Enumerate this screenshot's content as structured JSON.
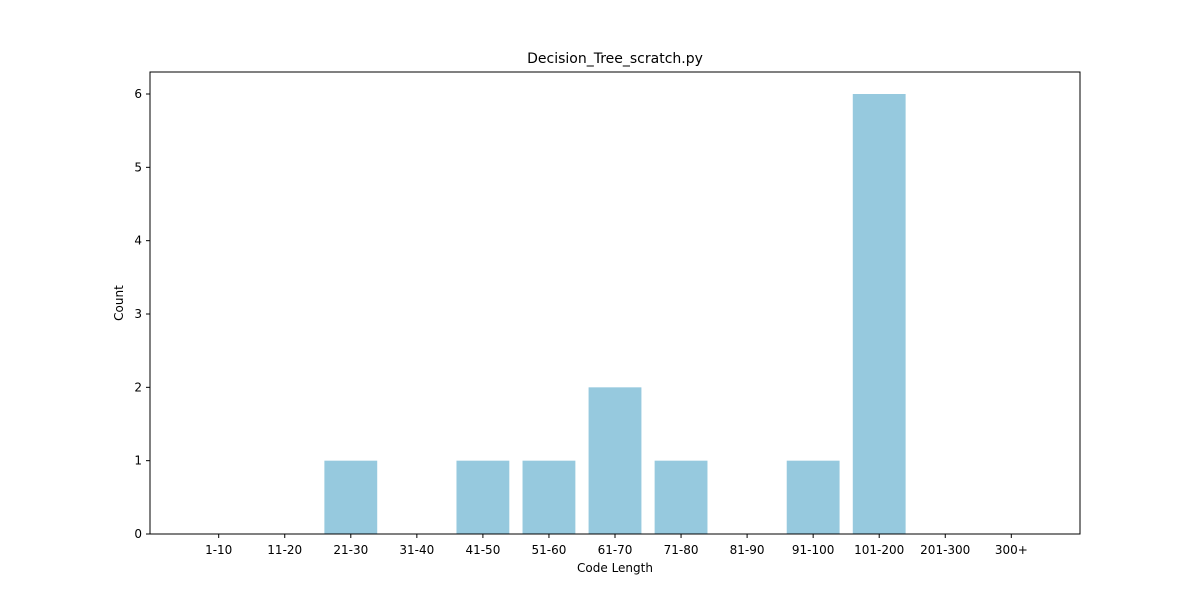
{
  "chart_data": {
    "type": "bar",
    "title": "Decision_Tree_scratch.py",
    "xlabel": "Code Length",
    "ylabel": "Count",
    "categories": [
      "1-10",
      "11-20",
      "21-30",
      "31-40",
      "41-50",
      "51-60",
      "61-70",
      "71-80",
      "81-90",
      "91-100",
      "101-200",
      "201-300",
      "300+"
    ],
    "values": [
      0,
      0,
      1,
      0,
      1,
      1,
      2,
      1,
      0,
      1,
      6,
      0,
      0
    ],
    "ylim": [
      0,
      6.3
    ],
    "yticks": [
      0,
      1,
      2,
      3,
      4,
      5,
      6
    ],
    "bar_color": "#96c9de",
    "grid": false,
    "legend": "none"
  }
}
